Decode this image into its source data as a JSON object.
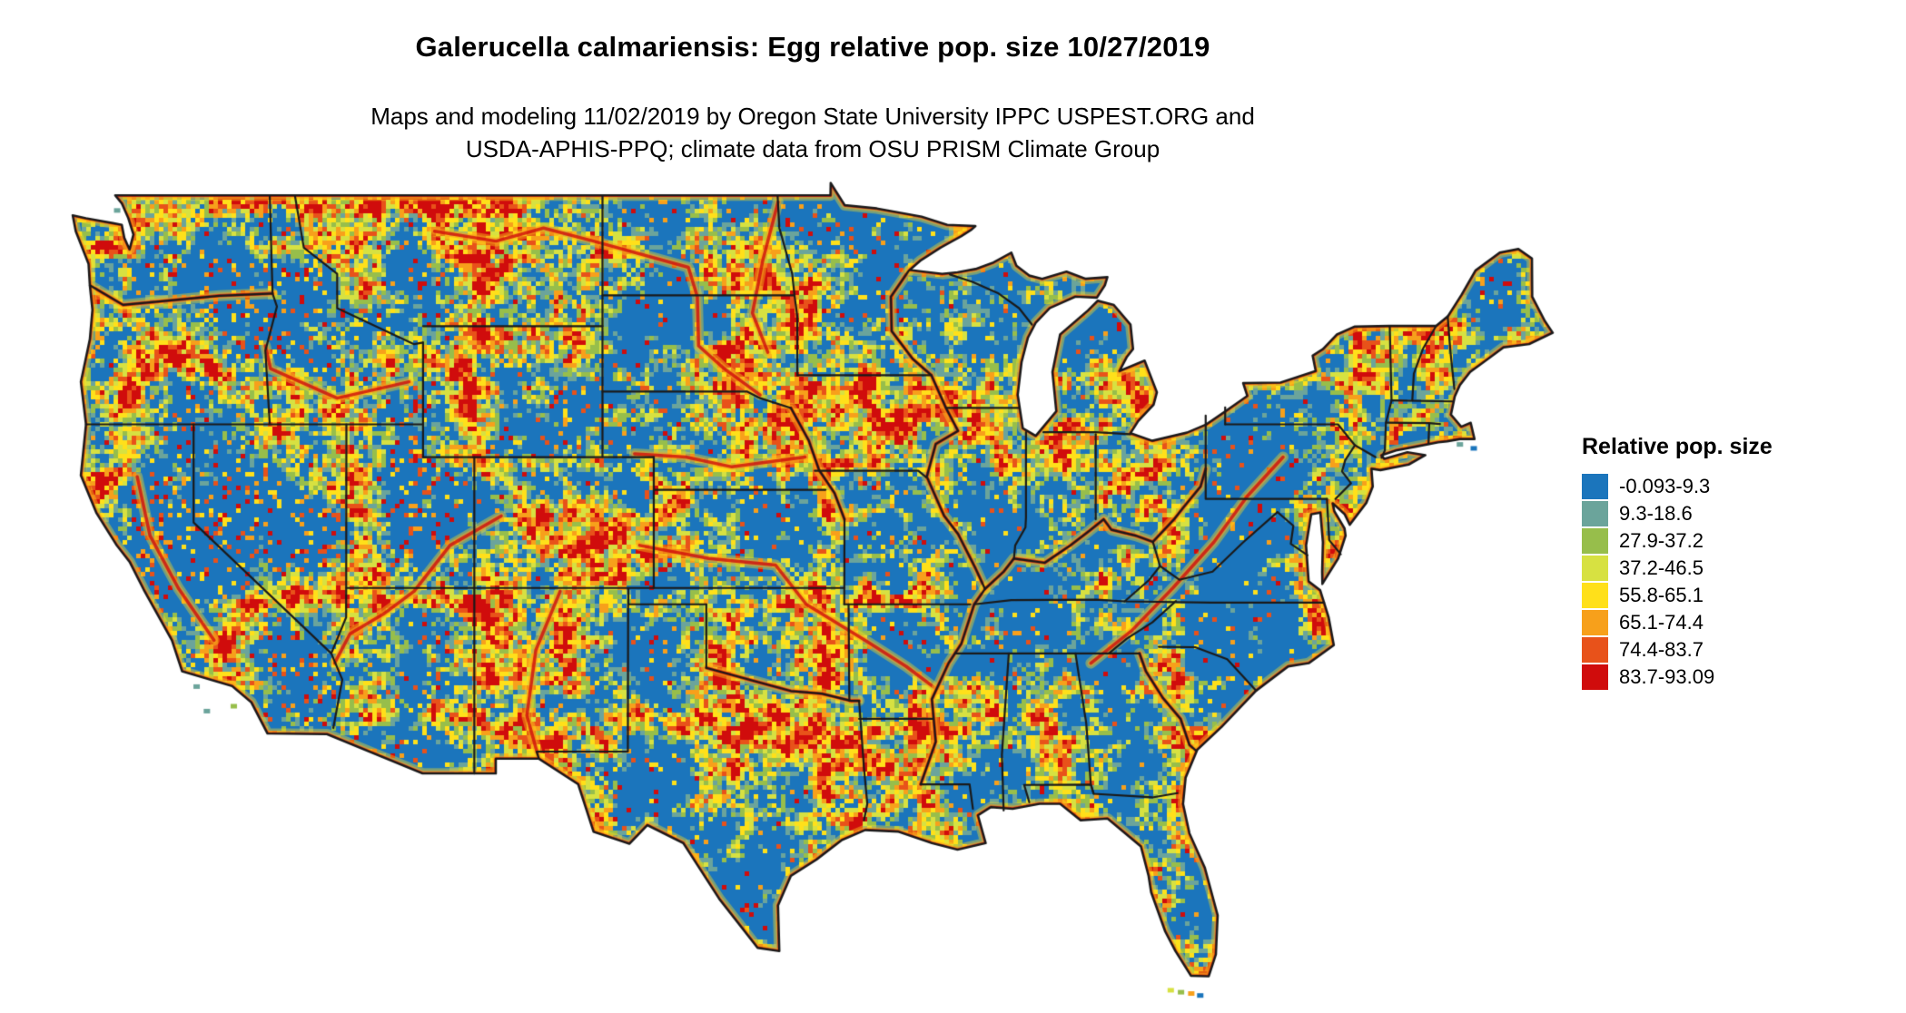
{
  "page": {
    "background_color": "#FFFFFF"
  },
  "header": {
    "title": "Galerucella calmariensis: Egg relative pop. size 10/27/2019",
    "subtitle_line1": "Maps and modeling 11/02/2019 by Oregon State University IPPC USPEST.ORG and",
    "subtitle_line2": "USDA-APHIS-PPQ; climate data from OSU PRISM Climate Group"
  },
  "map": {
    "land_base_color": "#1B75BC",
    "boundary_color": "#1A1A1A",
    "water_background_color": "#FFFFFF"
  },
  "legend": {
    "title": "Relative pop. size",
    "entries": [
      {
        "label": "-0.093-9.3",
        "color": "#1B75BC"
      },
      {
        "label": "9.3-18.6",
        "color": "#6BA49B"
      },
      {
        "label": "27.9-37.2",
        "color": "#97BE4B"
      },
      {
        "label": "37.2-46.5",
        "color": "#D7E141"
      },
      {
        "label": "55.8-65.1",
        "color": "#FFE01A"
      },
      {
        "label": "65.1-74.4",
        "color": "#F7A01B"
      },
      {
        "label": "74.4-83.7",
        "color": "#E8521A"
      },
      {
        "label": "83.7-93.09",
        "color": "#D00C0C"
      }
    ]
  }
}
